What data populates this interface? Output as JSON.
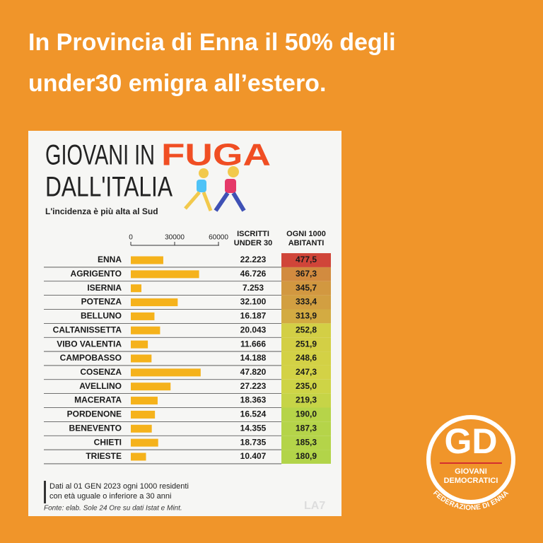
{
  "header": {
    "title_lines": [
      "In Provincia di Enna il 50% degli",
      "under30 emigra all’estero."
    ]
  },
  "chart_data": {
    "type": "bar",
    "orientation": "horizontal",
    "title": [
      "GIOVANI IN",
      "FUGA",
      "DALL'ITALIA"
    ],
    "subtitle": "L'incidenza è più alta al Sud",
    "categories": [
      "ENNA",
      "AGRIGENTO",
      "ISERNIA",
      "POTENZA",
      "BELLUNO",
      "CALTANISSETTA",
      "VIBO VALENTIA",
      "CAMPOBASSO",
      "COSENZA",
      "AVELLINO",
      "MACERATA",
      "PORDENONE",
      "BENEVENTO",
      "CHIETI",
      "TRIESTE"
    ],
    "series": [
      {
        "name": "ISCRITTI UNDER 30",
        "color": "#f5b21b",
        "values": [
          22223,
          46726,
          7253,
          32100,
          16187,
          20043,
          11666,
          14188,
          47820,
          27223,
          18363,
          16524,
          14355,
          18735,
          10407
        ],
        "value_labels": [
          "22.223",
          "46.726",
          "7.253",
          "32.100",
          "16.187",
          "20.043",
          "11.666",
          "14.188",
          "47.820",
          "27.223",
          "18.363",
          "16.524",
          "14.355",
          "18.735",
          "10.407"
        ]
      },
      {
        "name": "OGNI 1000 ABITANTI",
        "values": [
          477.5,
          367.3,
          345.7,
          333.4,
          313.9,
          252.8,
          251.9,
          248.6,
          247.3,
          235.0,
          219.3,
          190.0,
          187.3,
          185.3,
          180.9
        ],
        "value_labels": [
          "477,5",
          "367,3",
          "345,7",
          "333,4",
          "313,9",
          "252,8",
          "251,9",
          "248,6",
          "247,3",
          "235,0",
          "219,3",
          "190,0",
          "187,3",
          "185,3",
          "180,9"
        ]
      }
    ],
    "xlim": [
      0,
      60000
    ],
    "xticks": [
      0,
      30000,
      60000
    ],
    "notes": [
      "Dati al 01 GEN 2023 ogni 1000 residenti",
      "con età uguale o inferiore a 30 anni"
    ],
    "source": "Fonte: elab. Sole 24 Ore su dati Istat e Mint.",
    "watermark": "LA7"
  },
  "logo": {
    "initials": "GD",
    "name_lines": [
      "GIOVANI",
      "DEMOCRATICI"
    ],
    "federation": "FEDERAZIONE DI ENNA"
  }
}
